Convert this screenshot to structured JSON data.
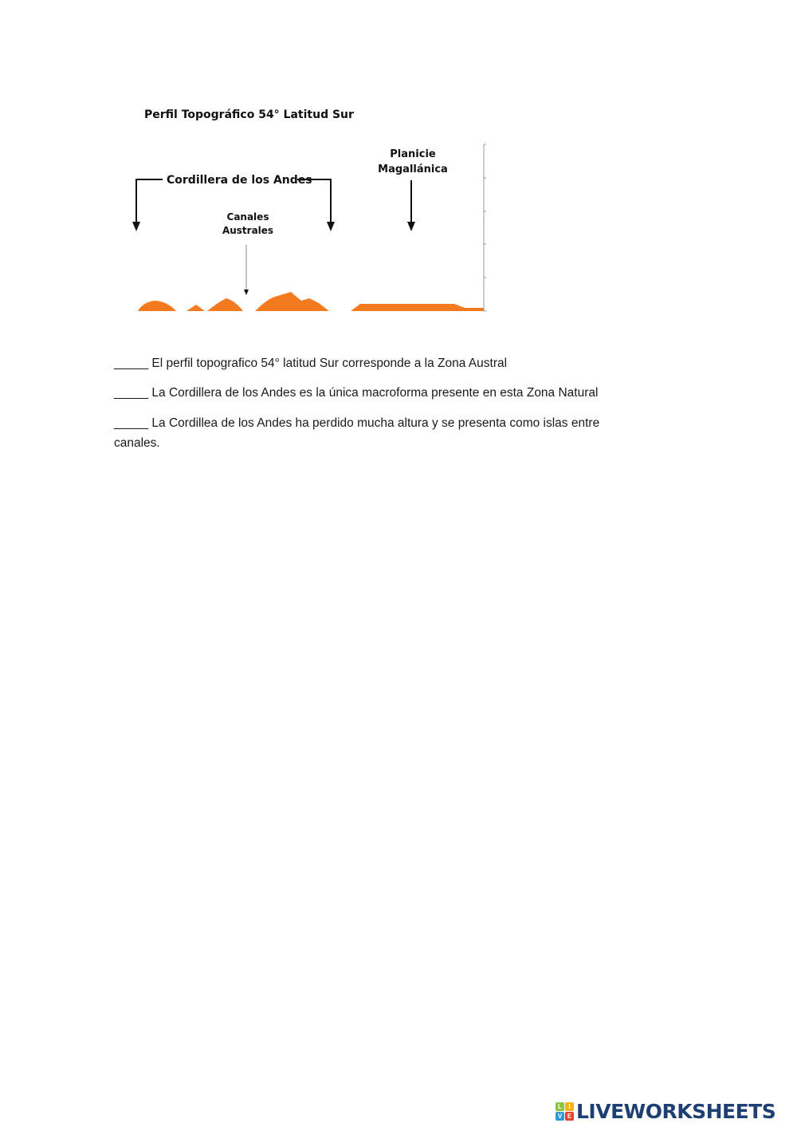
{
  "diagram": {
    "title": "Perfil Topográfico 54° Latitud Sur",
    "label_andes": "Cordillera de los Andes",
    "label_canales_1": "Canales",
    "label_canales_2": "Australes",
    "label_planicie_1": "Planicie",
    "label_planicie_2": "Magallánica",
    "relief_color": "#f47a20"
  },
  "statements": [
    {
      "blank": "_____",
      "text": "El perfil topografico 54° latitud Sur corresponde a la Zona Austral"
    },
    {
      "blank": "_____",
      "text": "La Cordillera de los Andes es la única macroforma presente en esta Zona Natural"
    },
    {
      "blank": "_____",
      "text": "La Cordillea de los Andes ha perdido mucha altura y se presenta como islas entre",
      "continuation": "canales."
    }
  ],
  "footer": {
    "logo_text": "LIVEWORKSHEETS",
    "logo_cube_letters": [
      "L",
      "I",
      "V",
      "E"
    ]
  }
}
